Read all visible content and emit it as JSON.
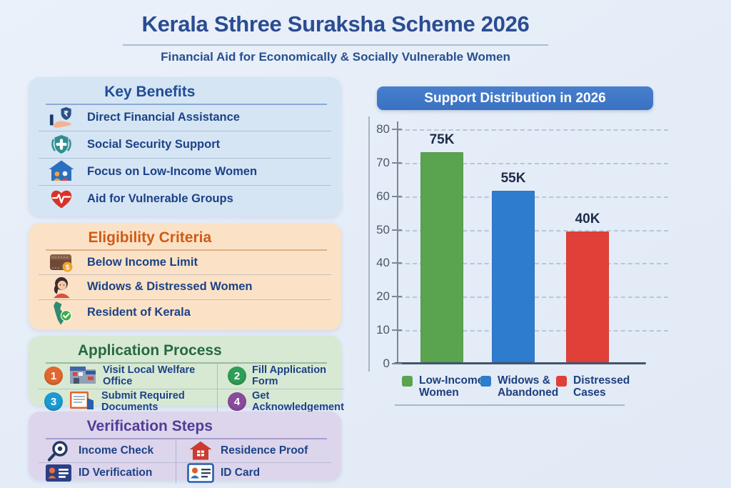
{
  "page": {
    "title": "Kerala Sthree Suraksha Scheme 2026",
    "subtitle": "Financial Aid for Economically & Socially Vulnerable Women"
  },
  "panels": {
    "benefits": {
      "header": "Key Benefits",
      "items": [
        {
          "icon": "rupee-shield-hand-icon",
          "label": "Direct Financial Assistance"
        },
        {
          "icon": "security-shield-cross-icon",
          "label": "Social Security Support"
        },
        {
          "icon": "house-family-icon",
          "label": "Focus on Low-Income Women"
        },
        {
          "icon": "heart-pulse-icon",
          "label": "Aid for Vulnerable Groups"
        }
      ]
    },
    "eligibility": {
      "header": "Eligibility Criteria",
      "items": [
        {
          "icon": "wallet-coin-icon",
          "label": "Below Income Limit"
        },
        {
          "icon": "woman-avatar-icon",
          "label": "Widows & Distressed Women"
        },
        {
          "icon": "kerala-map-check-icon",
          "label": "Resident of Kerala"
        }
      ]
    },
    "application": {
      "header": "Application Process",
      "steps": [
        {
          "number": "1",
          "circle_color": "#e2662f",
          "icon": "welfare-office-building-icon",
          "label": "Visit Local Welfare Office"
        },
        {
          "number": "2",
          "circle_color": "#2f9e57",
          "icon": null,
          "label": "Fill Application Form"
        },
        {
          "number": "3",
          "circle_color": "#1b9ad2",
          "icon": "documents-icon",
          "label": "Submit Required Documents"
        },
        {
          "number": "4",
          "circle_color": "#8a4b9d",
          "icon": null,
          "label": "Get Acknowledgement"
        }
      ]
    },
    "verification": {
      "header": "Verification Steps",
      "items": [
        {
          "icon": "magnifier-icon",
          "label": "Income Check"
        },
        {
          "icon": "red-house-icon",
          "label": "Residence Proof"
        },
        {
          "icon": "id-badge-icon",
          "label": "ID Verification"
        },
        {
          "icon": "id-card-icon",
          "label": "ID Card"
        }
      ]
    }
  },
  "chart_data": {
    "type": "bar",
    "title": "Support Distribution in 2026",
    "categories": [
      "Low-Income Women",
      "Widows & Abandoned",
      "Distressed Cases"
    ],
    "values": [
      75000,
      55000,
      40000
    ],
    "bar_labels": [
      "75K",
      "55K",
      "40K"
    ],
    "bar_colors": [
      "#5aa44f",
      "#2d7ccd",
      "#e04038"
    ],
    "bar_height_fracs": [
      0.896,
      0.732,
      0.558
    ],
    "y_tick_labels": [
      "80",
      "70",
      "60",
      "50",
      "40",
      "20",
      "10",
      "0"
    ],
    "ylim": [
      0,
      80
    ],
    "xlabel": "",
    "ylabel": "",
    "grid": "dashed-horizontal",
    "legend_position": "bottom",
    "legend": [
      {
        "color": "#5aa44f",
        "lines": "Low-Income\nWomen"
      },
      {
        "color": "#2d7ccd",
        "lines": "Widows &\nAbandoned"
      },
      {
        "color": "#e04038",
        "lines": "Distressed\nCases"
      }
    ]
  },
  "colors": {
    "background": "#e6edf7",
    "title_text": "#2a4c92",
    "chart_header_bg": "#3e76c6",
    "panel_benefits_bg": "#d5e5f4",
    "panel_eligibility_bg": "#fbe2c6",
    "panel_application_bg": "#d7e9d3",
    "panel_verification_bg": "#dcd5ec"
  }
}
